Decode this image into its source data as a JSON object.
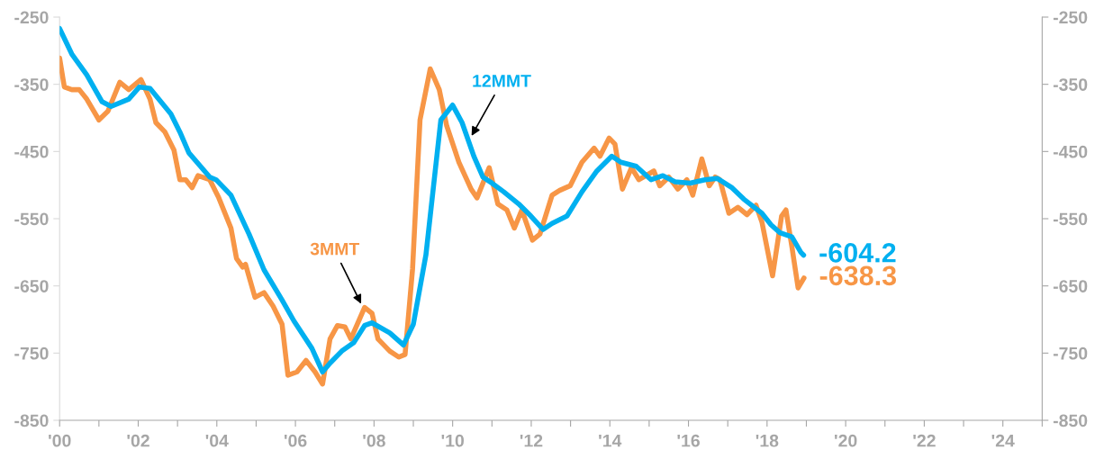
{
  "chart_data": {
    "type": "line",
    "xlim": [
      2000,
      2025
    ],
    "xticks": [
      {
        "value": 2000,
        "label": "'00"
      },
      {
        "value": 2001,
        "label": null
      },
      {
        "value": 2002,
        "label": "'02"
      },
      {
        "value": 2003,
        "label": null
      },
      {
        "value": 2004,
        "label": "'04"
      },
      {
        "value": 2005,
        "label": null
      },
      {
        "value": 2006,
        "label": "'06"
      },
      {
        "value": 2007,
        "label": null
      },
      {
        "value": 2008,
        "label": "'08"
      },
      {
        "value": 2009,
        "label": null
      },
      {
        "value": 2010,
        "label": "'10"
      },
      {
        "value": 2011,
        "label": null
      },
      {
        "value": 2012,
        "label": "'12"
      },
      {
        "value": 2013,
        "label": null
      },
      {
        "value": 2014,
        "label": "'14"
      },
      {
        "value": 2015,
        "label": null
      },
      {
        "value": 2016,
        "label": "'16"
      },
      {
        "value": 2017,
        "label": null
      },
      {
        "value": 2018,
        "label": "'18"
      },
      {
        "value": 2019,
        "label": null
      },
      {
        "value": 2020,
        "label": "'20"
      },
      {
        "value": 2021,
        "label": null
      },
      {
        "value": 2022,
        "label": "'22"
      },
      {
        "value": 2023,
        "label": null
      },
      {
        "value": 2024,
        "label": "'24"
      },
      {
        "value": 2025,
        "label": null
      }
    ],
    "ylim": [
      -850,
      -250
    ],
    "yticks": [
      -850,
      -750,
      -650,
      -550,
      -450,
      -350,
      -250
    ],
    "y2lim": [
      -850,
      -250
    ],
    "y2ticks": [
      -850,
      -750,
      -650,
      -550,
      -450,
      -350,
      -250
    ],
    "grid": false,
    "marker": "none",
    "line_style": "solid",
    "series": [
      {
        "color": "#f79646",
        "x": [
          2000.0,
          2000.12,
          2000.31,
          2000.5,
          2000.69,
          2001.0,
          2001.23,
          2001.53,
          2001.76,
          2002.07,
          2002.3,
          2002.45,
          2002.68,
          2002.91,
          2003.06,
          2003.21,
          2003.37,
          2003.52,
          2003.82,
          2004.05,
          2004.36,
          2004.5,
          2004.66,
          2004.73,
          2004.97,
          2005.2,
          2005.43,
          2005.66,
          2005.81,
          2006.04,
          2006.27,
          2006.5,
          2006.69,
          2006.88,
          2007.07,
          2007.26,
          2007.41,
          2007.76,
          2007.95,
          2008.1,
          2008.4,
          2008.63,
          2008.79,
          2008.98,
          2009.17,
          2009.43,
          2009.66,
          2009.85,
          2010.16,
          2010.47,
          2010.62,
          2010.93,
          2011.15,
          2011.38,
          2011.57,
          2011.76,
          2012.03,
          2012.22,
          2012.53,
          2012.72,
          2012.99,
          2013.29,
          2013.6,
          2013.75,
          2013.98,
          2014.13,
          2014.32,
          2014.55,
          2014.74,
          2015.12,
          2015.27,
          2015.5,
          2015.73,
          2015.96,
          2016.11,
          2016.34,
          2016.53,
          2016.68,
          2016.8,
          2017.03,
          2017.26,
          2017.49,
          2017.72,
          2017.87,
          2018.14,
          2018.37,
          2018.48,
          2018.63,
          2018.79,
          2018.94
        ],
        "values": [
          -311,
          -354,
          -358,
          -358,
          -372,
          -403,
          -390,
          -347,
          -358,
          -343,
          -372,
          -407,
          -421,
          -448,
          -492,
          -492,
          -504,
          -486,
          -492,
          -519,
          -564,
          -609,
          -622,
          -618,
          -667,
          -660,
          -680,
          -707,
          -783,
          -778,
          -761,
          -778,
          -796,
          -729,
          -709,
          -711,
          -729,
          -682,
          -691,
          -729,
          -747,
          -756,
          -752,
          -625,
          -403,
          -327,
          -358,
          -412,
          -466,
          -506,
          -519,
          -474,
          -528,
          -537,
          -564,
          -537,
          -582,
          -573,
          -515,
          -508,
          -501,
          -466,
          -445,
          -457,
          -430,
          -439,
          -506,
          -474,
          -492,
          -479,
          -501,
          -488,
          -506,
          -492,
          -515,
          -461,
          -501,
          -488,
          -492,
          -542,
          -533,
          -544,
          -530,
          -555,
          -635,
          -546,
          -537,
          -591,
          -653,
          -638.3
        ],
        "value_labels": [
          null,
          null,
          null,
          null,
          null,
          null,
          null,
          null,
          null,
          null,
          null,
          null,
          null,
          null,
          null,
          null,
          null,
          null,
          null,
          null,
          null,
          null,
          null,
          null,
          null,
          null,
          null,
          null,
          null,
          null,
          null,
          null,
          null,
          null,
          null,
          null,
          null,
          null,
          null,
          null,
          null,
          null,
          null,
          null,
          null,
          null,
          null,
          null,
          null,
          null,
          null,
          null,
          null,
          null,
          null,
          null,
          null,
          null,
          null,
          null,
          null,
          null,
          null,
          null,
          null,
          null,
          null,
          null,
          null,
          null,
          null,
          null,
          null,
          null,
          null,
          null,
          null,
          null,
          null,
          null,
          null,
          null,
          null,
          null,
          null,
          null,
          null,
          null,
          null,
          "-638.3"
        ]
      },
      {
        "color": "#00b0f0",
        "x": [
          2000.0,
          2000.31,
          2000.69,
          2001.08,
          2001.31,
          2001.76,
          2002.03,
          2002.3,
          2002.83,
          2003.06,
          2003.29,
          2003.82,
          2003.98,
          2004.36,
          2004.82,
          2005.2,
          2005.66,
          2005.96,
          2006.42,
          2006.69,
          2006.88,
          2007.18,
          2007.49,
          2007.76,
          2007.95,
          2008.4,
          2008.75,
          2009.0,
          2009.32,
          2009.7,
          2010.0,
          2010.24,
          2010.54,
          2010.77,
          2011.0,
          2011.3,
          2011.68,
          2011.99,
          2012.3,
          2012.53,
          2012.91,
          2013.29,
          2013.67,
          2014.05,
          2014.28,
          2014.67,
          2015.05,
          2015.35,
          2015.66,
          2016.04,
          2016.42,
          2016.73,
          2017.11,
          2017.41,
          2017.87,
          2018.1,
          2018.33,
          2018.63,
          2018.86,
          2018.93
        ],
        "values": [
          -267,
          -305,
          -336,
          -376,
          -383,
          -372,
          -354,
          -356,
          -394,
          -421,
          -452,
          -488,
          -492,
          -515,
          -573,
          -626,
          -671,
          -702,
          -743,
          -778,
          -765,
          -747,
          -734,
          -709,
          -705,
          -720,
          -738,
          -707,
          -604,
          -403,
          -381,
          -407,
          -457,
          -488,
          -497,
          -510,
          -528,
          -546,
          -566,
          -557,
          -546,
          -510,
          -479,
          -457,
          -466,
          -472,
          -492,
          -486,
          -495,
          -497,
          -492,
          -490,
          -504,
          -521,
          -542,
          -559,
          -571,
          -577,
          -600,
          -604.2
        ],
        "value_labels": [
          null,
          null,
          null,
          null,
          null,
          null,
          null,
          null,
          null,
          null,
          null,
          null,
          null,
          null,
          null,
          null,
          null,
          null,
          null,
          null,
          null,
          null,
          null,
          null,
          null,
          null,
          null,
          null,
          null,
          null,
          null,
          null,
          null,
          null,
          null,
          null,
          null,
          null,
          null,
          null,
          null,
          null,
          null,
          null,
          null,
          null,
          null,
          null,
          null,
          null,
          null,
          null,
          null,
          null,
          null,
          null,
          null,
          null,
          null,
          "-604.2"
        ]
      }
    ],
    "annotations": [
      {
        "text": "3MMT",
        "x": 2007.7,
        "y": -680
      },
      {
        "text": "12MMT",
        "x": 2010.45,
        "y": -430
      }
    ]
  }
}
